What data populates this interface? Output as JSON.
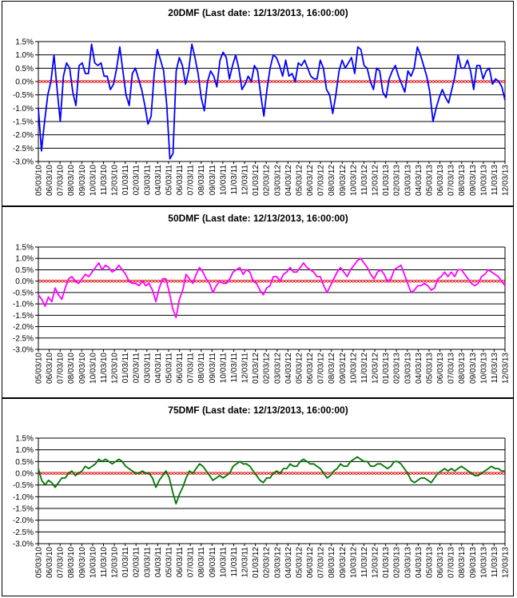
{
  "colors": {
    "background": "#ffffff",
    "gridline": "#000000",
    "zero_line": "#cc0000",
    "zero_marker": "#ffb0b0"
  },
  "chart_data": [
    {
      "type": "line",
      "title": "20DMF (Last date: 12/13/2013, 16:00:00)",
      "ylim": [
        -3.0,
        1.5
      ],
      "ytick_labels": [
        "1.5%",
        "1.0%",
        "0.5%",
        "0.0%",
        "-0.5%",
        "-1.0%",
        "-1.5%",
        "-2.0%",
        "-2.5%",
        "-3.0%"
      ],
      "x_tick_labels": [
        "05/03/10",
        "06/03/10",
        "07/03/10",
        "08/03/10",
        "09/03/10",
        "10/03/10",
        "11/03/10",
        "12/03/10",
        "01/03/11",
        "02/03/11",
        "03/03/11",
        "04/03/11",
        "05/03/11",
        "06/03/11",
        "07/03/11",
        "08/03/11",
        "09/03/11",
        "10/03/11",
        "11/03/11",
        "12/03/11",
        "01/03/12",
        "02/03/12",
        "03/03/12",
        "04/03/12",
        "05/03/12",
        "06/03/12",
        "07/03/12",
        "08/03/12",
        "09/03/12",
        "10/03/12",
        "11/03/12",
        "12/03/12",
        "01/03/13",
        "02/03/13",
        "03/03/13",
        "04/03/13",
        "05/03/13",
        "06/03/13",
        "07/03/13",
        "08/03/13",
        "09/03/13",
        "10/03/13",
        "11/03/13",
        "12/03/13"
      ],
      "grid": true,
      "series": [
        {
          "color": "#0000ff",
          "values": [
            -1.0,
            -2.6,
            -1.5,
            -0.5,
            0.0,
            1.0,
            -0.3,
            -1.5,
            0.2,
            0.7,
            0.5,
            -0.4,
            -0.9,
            0.6,
            0.7,
            0.3,
            0.3,
            1.4,
            0.7,
            0.6,
            0.7,
            0.2,
            0.2,
            -0.3,
            -0.1,
            0.5,
            1.3,
            0.4,
            -0.5,
            -0.9,
            0.3,
            0.5,
            0.1,
            -0.3,
            -0.9,
            -1.6,
            -1.3,
            0.3,
            1.2,
            0.8,
            0.4,
            -0.9,
            -2.9,
            -2.7,
            0.4,
            0.9,
            0.6,
            -0.1,
            0.4,
            1.4,
            0.9,
            0.3,
            -0.6,
            -1.1,
            0.0,
            0.4,
            0.2,
            -0.2,
            0.8,
            1.1,
            0.9,
            0.1,
            0.6,
            1.0,
            0.5,
            -0.3,
            -0.1,
            0.2,
            0.0,
            0.6,
            0.4,
            -0.5,
            -1.3,
            -0.3,
            0.5,
            1.0,
            0.9,
            0.6,
            0.2,
            0.8,
            0.2,
            0.3,
            0.0,
            0.7,
            0.6,
            0.8,
            0.5,
            0.2,
            0.1,
            0.1,
            0.8,
            0.5,
            -0.3,
            -0.5,
            -1.2,
            -0.5,
            0.4,
            0.8,
            0.5,
            0.7,
            0.9,
            0.3,
            1.3,
            1.2,
            0.6,
            0.5,
            0.0,
            -0.3,
            0.5,
            0.4,
            -0.4,
            -0.6,
            0.1,
            0.4,
            0.6,
            0.2,
            -0.1,
            -0.4,
            0.4,
            0.2,
            0.5,
            1.3,
            1.0,
            0.6,
            0.2,
            -0.4,
            -1.5,
            -1.0,
            -0.6,
            -0.3,
            -0.6,
            -0.8,
            -0.3,
            0.2,
            1.0,
            0.5,
            0.5,
            0.8,
            0.4,
            -0.3,
            0.6,
            0.6,
            0.1,
            0.4,
            0.5,
            -0.1,
            0.1,
            0.0,
            -0.2,
            -0.7
          ]
        }
      ]
    },
    {
      "type": "line",
      "title": "50DMF (Last date: 12/13/2013, 16:00:00)",
      "ylim": [
        -3.0,
        1.5
      ],
      "ytick_labels": [
        "1.5%",
        "1.0%",
        "0.5%",
        "0.0%",
        "-0.5%",
        "-1.0%",
        "-1.5%",
        "-2.0%",
        "-2.5%",
        "-3.0%"
      ],
      "x_tick_labels": [
        "05/03/10",
        "06/03/10",
        "07/03/10",
        "08/03/10",
        "09/03/10",
        "10/03/10",
        "11/03/10",
        "12/03/10",
        "01/03/11",
        "02/03/11",
        "03/03/11",
        "04/03/11",
        "05/03/11",
        "06/03/11",
        "07/03/11",
        "08/03/11",
        "09/03/11",
        "10/03/11",
        "11/03/11",
        "12/03/11",
        "01/03/12",
        "02/03/12",
        "03/03/12",
        "04/03/12",
        "05/03/12",
        "06/03/12",
        "07/03/12",
        "08/03/12",
        "09/03/12",
        "10/03/12",
        "11/03/12",
        "12/03/12",
        "01/03/13",
        "02/03/13",
        "03/03/13",
        "04/03/13",
        "05/03/13",
        "06/03/13",
        "07/03/13",
        "08/03/13",
        "09/03/13",
        "10/03/13",
        "11/03/13",
        "12/03/13"
      ],
      "grid": true,
      "series": [
        {
          "color": "#ff00ff",
          "values": [
            -0.6,
            -0.8,
            -1.1,
            -0.7,
            -0.9,
            -0.3,
            -0.6,
            -0.8,
            -0.3,
            0.1,
            0.2,
            0.0,
            -0.1,
            0.1,
            0.3,
            0.2,
            0.4,
            0.6,
            0.8,
            0.5,
            0.7,
            0.6,
            0.4,
            0.5,
            0.7,
            0.5,
            0.3,
            0.0,
            -0.1,
            -0.1,
            -0.2,
            0.0,
            -0.2,
            -0.1,
            -0.4,
            -0.9,
            -0.3,
            0.1,
            0.1,
            -0.5,
            -1.2,
            -1.6,
            -0.8,
            -0.4,
            0.3,
            0.1,
            -0.1,
            0.3,
            0.6,
            0.4,
            0.1,
            -0.1,
            -0.5,
            -0.2,
            0.0,
            -0.1,
            -0.1,
            0.1,
            0.4,
            0.5,
            0.6,
            0.3,
            0.5,
            0.4,
            0.0,
            -0.1,
            -0.4,
            -0.6,
            -0.3,
            -0.2,
            0.2,
            0.2,
            0.0,
            0.3,
            0.4,
            0.6,
            0.4,
            0.4,
            0.6,
            0.8,
            0.6,
            0.5,
            0.4,
            0.2,
            0.2,
            -0.2,
            -0.5,
            -0.2,
            0.1,
            0.4,
            0.6,
            0.4,
            0.2,
            0.5,
            0.7,
            0.9,
            1.0,
            0.8,
            0.6,
            0.3,
            0.1,
            0.4,
            0.5,
            0.3,
            0.0,
            0.1,
            0.5,
            0.6,
            0.7,
            0.3,
            -0.1,
            -0.5,
            -0.4,
            -0.2,
            -0.2,
            -0.1,
            -0.2,
            -0.4,
            -0.3,
            0.1,
            0.2,
            0.4,
            0.2,
            0.4,
            0.2,
            0.5,
            0.5,
            0.3,
            0.1,
            -0.1,
            -0.2,
            -0.1,
            0.2,
            0.3,
            0.5,
            0.4,
            0.3,
            0.2,
            0.0,
            -0.2
          ]
        }
      ]
    },
    {
      "type": "line",
      "title": "75DMF (Last date: 12/13/2013, 16:00:00)",
      "ylim": [
        -3.0,
        1.5
      ],
      "ytick_labels": [
        "1.5%",
        "1.0%",
        "0.5%",
        "0.0%",
        "-0.5%",
        "-1.0%",
        "-1.5%",
        "-2.0%",
        "-2.5%",
        "-3.0%"
      ],
      "x_tick_labels": [
        "05/03/10",
        "06/03/10",
        "07/03/10",
        "08/03/10",
        "09/03/10",
        "10/03/10",
        "11/03/10",
        "12/03/10",
        "01/03/11",
        "02/03/11",
        "03/03/11",
        "04/03/11",
        "05/03/11",
        "06/03/11",
        "07/03/11",
        "08/03/11",
        "09/03/11",
        "10/03/11",
        "11/03/11",
        "12/03/11",
        "01/03/12",
        "02/03/12",
        "03/03/12",
        "04/03/12",
        "05/03/12",
        "06/03/12",
        "07/03/12",
        "08/03/12",
        "09/03/12",
        "10/03/12",
        "11/03/12",
        "12/03/12",
        "01/03/13",
        "02/03/13",
        "03/03/13",
        "04/03/13",
        "05/03/13",
        "06/03/13",
        "07/03/13",
        "08/03/13",
        "09/03/13",
        "10/03/13",
        "11/03/13",
        "12/03/13"
      ],
      "grid": true,
      "series": [
        {
          "color": "#007700",
          "values": [
            0.2,
            -0.3,
            -0.5,
            -0.3,
            -0.4,
            -0.6,
            -0.4,
            -0.2,
            -0.2,
            0.0,
            0.1,
            -0.1,
            0.0,
            0.1,
            0.3,
            0.2,
            0.3,
            0.4,
            0.6,
            0.5,
            0.6,
            0.5,
            0.4,
            0.5,
            0.6,
            0.5,
            0.3,
            0.2,
            0.1,
            0.0,
            0.0,
            0.1,
            0.0,
            0.0,
            -0.2,
            -0.6,
            -0.3,
            -0.1,
            0.1,
            -0.2,
            -0.8,
            -1.3,
            -0.9,
            -0.6,
            -0.2,
            0.1,
            0.0,
            0.2,
            0.4,
            0.3,
            0.1,
            -0.1,
            -0.3,
            -0.2,
            -0.1,
            -0.2,
            -0.1,
            0.0,
            0.3,
            0.4,
            0.5,
            0.4,
            0.4,
            0.3,
            0.1,
            -0.1,
            -0.3,
            -0.4,
            -0.2,
            -0.2,
            0.0,
            0.1,
            0.0,
            0.2,
            0.2,
            0.4,
            0.3,
            0.3,
            0.5,
            0.6,
            0.5,
            0.4,
            0.4,
            0.3,
            0.2,
            0.0,
            -0.2,
            -0.1,
            0.1,
            0.2,
            0.4,
            0.3,
            0.3,
            0.5,
            0.6,
            0.7,
            0.6,
            0.5,
            0.5,
            0.3,
            0.3,
            0.4,
            0.4,
            0.3,
            0.2,
            0.3,
            0.5,
            0.5,
            0.4,
            0.2,
            0.0,
            -0.3,
            -0.4,
            -0.3,
            -0.2,
            -0.2,
            -0.3,
            -0.4,
            -0.2,
            0.0,
            0.1,
            0.2,
            0.1,
            0.2,
            0.1,
            0.2,
            0.3,
            0.2,
            0.1,
            0.0,
            -0.1,
            -0.1,
            0.0,
            0.1,
            0.2,
            0.3,
            0.2,
            0.2,
            0.1,
            0.1
          ]
        }
      ]
    }
  ]
}
